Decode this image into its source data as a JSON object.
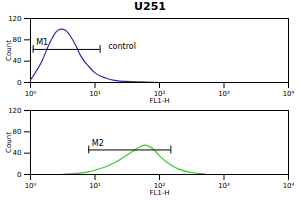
{
  "chart_data": [
    {
      "type": "line",
      "title": "U251",
      "xlabel": "FL1-H",
      "ylabel": "Count",
      "log": "x",
      "x": [
        1,
        1.5,
        2,
        2.5,
        3,
        3.5,
        4,
        5,
        6,
        8,
        10,
        15,
        20,
        30,
        50,
        100
      ],
      "values": [
        5,
        40,
        75,
        95,
        100,
        98,
        90,
        70,
        50,
        30,
        18,
        8,
        4,
        2,
        1,
        0
      ],
      "color": "#2b2bb0",
      "xlim": [
        1,
        10000
      ],
      "xticks": [
        {
          "value": 1,
          "label": "10⁰"
        },
        {
          "value": 10,
          "label": "10¹"
        },
        {
          "value": 100,
          "label": "10²"
        },
        {
          "value": 1000,
          "label": "10³"
        },
        {
          "value": 10000,
          "label": "10⁴"
        }
      ],
      "ylim": [
        0,
        120
      ],
      "yticks": [
        0,
        40,
        80,
        120
      ],
      "gate": {
        "label": "M1",
        "range": [
          1.1,
          12
        ],
        "y": 62
      },
      "annotations": [
        {
          "text": "control",
          "x": 16,
          "y": 68
        }
      ]
    },
    {
      "type": "line",
      "xlabel": "FL1-H",
      "ylabel": "Count",
      "log": "x",
      "x": [
        3,
        5,
        8,
        10,
        15,
        20,
        30,
        40,
        50,
        60,
        70,
        80,
        100,
        150,
        200,
        300,
        500
      ],
      "values": [
        0,
        2,
        5,
        8,
        15,
        22,
        35,
        45,
        52,
        55,
        52,
        48,
        35,
        18,
        10,
        4,
        1
      ],
      "color": "#33cc33",
      "xlim": [
        1,
        10000
      ],
      "xticks": [
        {
          "value": 1,
          "label": "10⁰"
        },
        {
          "value": 10,
          "label": "10¹"
        },
        {
          "value": 100,
          "label": "10²"
        },
        {
          "value": 1000,
          "label": "10³"
        },
        {
          "value": 10000,
          "label": "10⁴"
        }
      ],
      "ylim": [
        0,
        120
      ],
      "yticks": [
        0,
        40,
        80,
        120
      ],
      "gate": {
        "label": "M2",
        "range": [
          8,
          150
        ],
        "y": 46
      }
    }
  ]
}
